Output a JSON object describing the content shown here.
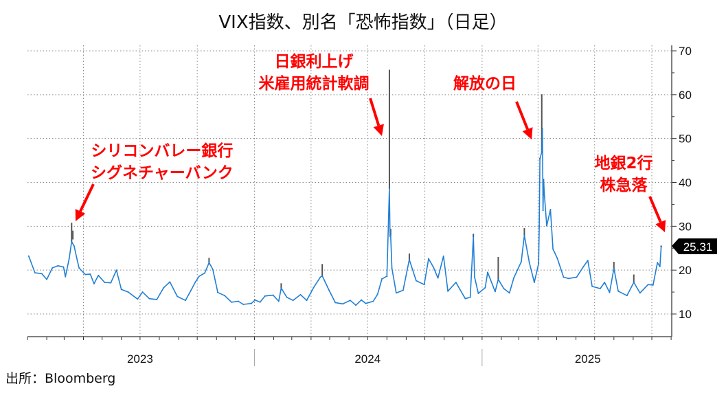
{
  "title": "VIX指数、別名「恐怖指数」（日足）",
  "source": "出所：Bloomberg",
  "annotations": [
    {
      "line1": "シリコンバレー銀行",
      "line2": "シグネチャーバンク"
    },
    {
      "line1": "日銀利上げ",
      "line2": "米雇用統計軟調"
    },
    {
      "line1": "解放の日",
      "line2": ""
    },
    {
      "line1": "地銀2行",
      "line2": "株急落"
    }
  ],
  "colors": {
    "line": "#1f7fd6",
    "wick": "#555555",
    "annotation": "#ff0000",
    "tag_bg": "#000000"
  },
  "chart_data": {
    "type": "line",
    "title": "VIX指数、別名「恐怖指数」（日足）",
    "xlabel": "",
    "ylabel": "",
    "ylim": [
      5,
      71
    ],
    "xlim": [
      "2023-01-01",
      "2025-11-02"
    ],
    "y_ticks": [
      10,
      20,
      30,
      40,
      50,
      60,
      70
    ],
    "x_tick_labels": [
      "2023",
      "2024",
      "2025"
    ],
    "y_axis_position": "right",
    "grid": true,
    "last_value_label": "25.31",
    "series": [
      {
        "name": "VIX",
        "points": [
          [
            "2023-01-03",
            23.2
          ],
          [
            "2023-01-13",
            19.4
          ],
          [
            "2023-01-24",
            19.2
          ],
          [
            "2023-02-01",
            17.9
          ],
          [
            "2023-02-10",
            20.5
          ],
          [
            "2023-02-19",
            21.0
          ],
          [
            "2023-02-28",
            20.7
          ],
          [
            "2023-03-03",
            18.5
          ],
          [
            "2023-03-09",
            22.6
          ],
          [
            "2023-03-13",
            26.5
          ],
          [
            "2023-03-17",
            25.5
          ],
          [
            "2023-03-22",
            22.3
          ],
          [
            "2023-03-25",
            20.5
          ],
          [
            "2023-04-04",
            19.0
          ],
          [
            "2023-04-12",
            19.1
          ],
          [
            "2023-04-18",
            16.9
          ],
          [
            "2023-04-25",
            18.8
          ],
          [
            "2023-05-05",
            17.2
          ],
          [
            "2023-05-15",
            17.1
          ],
          [
            "2023-05-24",
            20.0
          ],
          [
            "2023-06-01",
            15.6
          ],
          [
            "2023-06-12",
            15.0
          ],
          [
            "2023-06-27",
            13.4
          ],
          [
            "2023-07-05",
            15.0
          ],
          [
            "2023-07-16",
            13.5
          ],
          [
            "2023-07-28",
            13.3
          ],
          [
            "2023-08-08",
            16.0
          ],
          [
            "2023-08-18",
            17.3
          ],
          [
            "2023-08-30",
            14.0
          ],
          [
            "2023-09-12",
            13.1
          ],
          [
            "2023-09-21",
            15.4
          ],
          [
            "2023-09-28",
            17.3
          ],
          [
            "2023-10-04",
            18.6
          ],
          [
            "2023-10-13",
            19.3
          ],
          [
            "2023-10-20",
            21.7
          ],
          [
            "2023-10-26",
            20.2
          ],
          [
            "2023-11-03",
            14.9
          ],
          [
            "2023-11-14",
            14.2
          ],
          [
            "2023-11-25",
            12.7
          ],
          [
            "2023-12-06",
            12.9
          ],
          [
            "2023-12-14",
            12.2
          ],
          [
            "2023-12-27",
            12.4
          ],
          [
            "2024-01-02",
            13.2
          ],
          [
            "2024-01-10",
            12.7
          ],
          [
            "2024-01-18",
            14.1
          ],
          [
            "2024-01-31",
            14.3
          ],
          [
            "2024-02-09",
            12.9
          ],
          [
            "2024-02-13",
            15.9
          ],
          [
            "2024-02-22",
            13.8
          ],
          [
            "2024-03-03",
            13.1
          ],
          [
            "2024-03-15",
            14.4
          ],
          [
            "2024-03-25",
            13.1
          ],
          [
            "2024-04-05",
            16.0
          ],
          [
            "2024-04-16",
            18.4
          ],
          [
            "2024-04-19",
            18.7
          ],
          [
            "2024-04-30",
            15.4
          ],
          [
            "2024-05-10",
            12.6
          ],
          [
            "2024-05-22",
            12.3
          ],
          [
            "2024-06-03",
            13.1
          ],
          [
            "2024-06-12",
            12.0
          ],
          [
            "2024-06-21",
            13.2
          ],
          [
            "2024-06-28",
            12.4
          ],
          [
            "2024-07-10",
            12.9
          ],
          [
            "2024-07-17",
            14.5
          ],
          [
            "2024-07-24",
            18.0
          ],
          [
            "2024-08-01",
            18.6
          ],
          [
            "2024-08-02",
            23.4
          ],
          [
            "2024-08-05",
            38.6
          ],
          [
            "2024-08-06",
            27.7
          ],
          [
            "2024-08-07",
            27.9
          ],
          [
            "2024-08-09",
            20.4
          ],
          [
            "2024-08-16",
            14.8
          ],
          [
            "2024-08-27",
            15.4
          ],
          [
            "2024-09-06",
            22.4
          ],
          [
            "2024-09-17",
            17.6
          ],
          [
            "2024-09-30",
            16.7
          ],
          [
            "2024-10-07",
            22.6
          ],
          [
            "2024-10-15",
            20.6
          ],
          [
            "2024-10-22",
            18.2
          ],
          [
            "2024-10-31",
            23.2
          ],
          [
            "2024-11-07",
            15.2
          ],
          [
            "2024-11-20",
            17.2
          ],
          [
            "2024-12-05",
            13.5
          ],
          [
            "2024-12-13",
            13.8
          ],
          [
            "2024-12-18",
            27.6
          ],
          [
            "2024-12-20",
            18.4
          ],
          [
            "2024-12-26",
            14.7
          ],
          [
            "2025-01-06",
            16.0
          ],
          [
            "2025-01-10",
            19.5
          ],
          [
            "2025-01-22",
            15.1
          ],
          [
            "2025-01-27",
            17.9
          ],
          [
            "2025-02-05",
            15.8
          ],
          [
            "2025-02-14",
            14.8
          ],
          [
            "2025-02-21",
            18.2
          ],
          [
            "2025-03-05",
            21.9
          ],
          [
            "2025-03-10",
            27.9
          ],
          [
            "2025-03-18",
            21.7
          ],
          [
            "2025-03-26",
            17.2
          ],
          [
            "2025-04-02",
            21.5
          ],
          [
            "2025-04-03",
            30.0
          ],
          [
            "2025-04-04",
            45.3
          ],
          [
            "2025-04-07",
            47.0
          ],
          [
            "2025-04-08",
            52.3
          ],
          [
            "2025-04-09",
            33.6
          ],
          [
            "2025-04-10",
            40.7
          ],
          [
            "2025-04-11",
            37.6
          ],
          [
            "2025-04-15",
            30.1
          ],
          [
            "2025-04-21",
            33.8
          ],
          [
            "2025-04-25",
            24.8
          ],
          [
            "2025-05-02",
            22.7
          ],
          [
            "2025-05-12",
            18.4
          ],
          [
            "2025-05-20",
            18.1
          ],
          [
            "2025-06-02",
            18.4
          ],
          [
            "2025-06-13",
            20.8
          ],
          [
            "2025-06-20",
            22.2
          ],
          [
            "2025-06-27",
            16.3
          ],
          [
            "2025-07-10",
            15.8
          ],
          [
            "2025-07-17",
            17.2
          ],
          [
            "2025-07-25",
            14.9
          ],
          [
            "2025-08-01",
            20.4
          ],
          [
            "2025-08-08",
            15.2
          ],
          [
            "2025-08-22",
            14.2
          ],
          [
            "2025-09-02",
            17.2
          ],
          [
            "2025-09-12",
            14.8
          ],
          [
            "2025-09-25",
            16.7
          ],
          [
            "2025-10-03",
            16.6
          ],
          [
            "2025-10-10",
            21.7
          ],
          [
            "2025-10-14",
            20.8
          ],
          [
            "2025-10-16",
            25.31
          ]
        ],
        "highs": [
          [
            "2023-03-13",
            30.8
          ],
          [
            "2023-03-15",
            29.0
          ],
          [
            "2023-10-20",
            22.8
          ],
          [
            "2024-02-13",
            17.0
          ],
          [
            "2024-04-19",
            21.4
          ],
          [
            "2024-08-05",
            65.7
          ],
          [
            "2024-08-07",
            29.4
          ],
          [
            "2024-09-06",
            23.8
          ],
          [
            "2024-12-18",
            28.3
          ],
          [
            "2025-01-27",
            23.0
          ],
          [
            "2025-03-10",
            29.6
          ],
          [
            "2025-04-07",
            60.1
          ],
          [
            "2025-04-04",
            45.6
          ],
          [
            "2025-08-01",
            21.9
          ],
          [
            "2025-09-02",
            19.0
          ],
          [
            "2025-10-16",
            25.6
          ]
        ]
      }
    ]
  }
}
